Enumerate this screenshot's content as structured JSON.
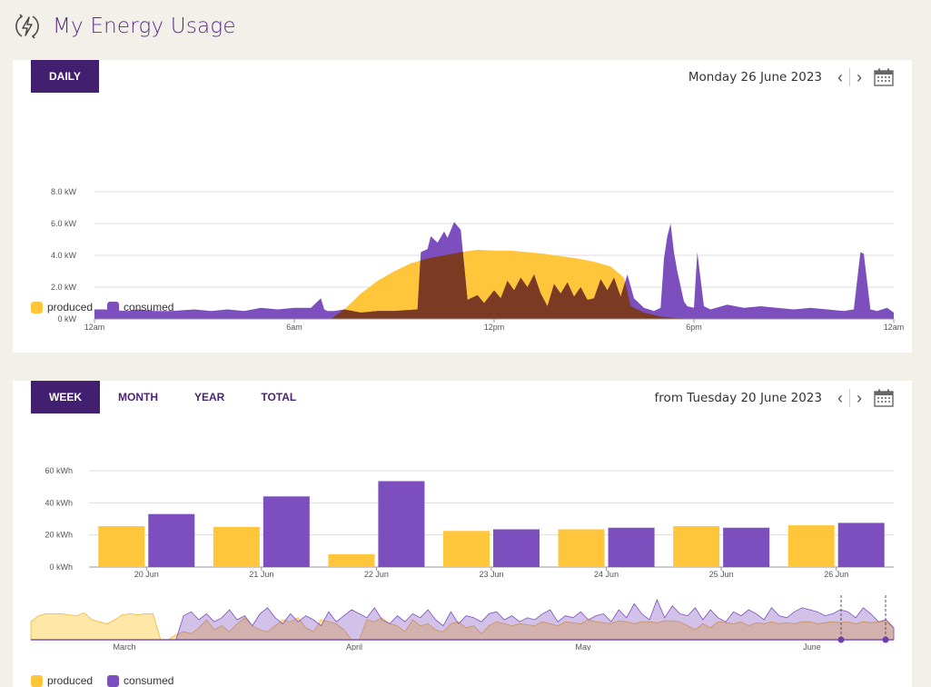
{
  "header": {
    "title": "My Energy Usage",
    "icon": "energy-bolt-icon"
  },
  "colors": {
    "produced": "#ffc63b",
    "consumed": "#7d4ebd",
    "overlap": "#7a3b22",
    "accent": "#43206f"
  },
  "daily": {
    "tab_label": "DAILY",
    "date": "Monday 26 June 2023",
    "legend": {
      "produced": "produced",
      "consumed": "consumed"
    },
    "chart_data": {
      "type": "area",
      "title": "",
      "y_unit": "kW",
      "ylim": [
        0,
        8
      ],
      "y_ticks": [
        "0 kW",
        "2.0 kW",
        "4.0 kW",
        "6.0 kW",
        "8.0 kW"
      ],
      "x_ticks": [
        "12am",
        "6am",
        "12pm",
        "6pm",
        "12am"
      ],
      "grid": true,
      "series": [
        {
          "name": "produced",
          "x_hours": [
            0,
            7.1,
            7.5,
            8,
            8.5,
            9,
            9.5,
            10,
            10.5,
            11,
            11.5,
            12,
            12.5,
            13,
            13.5,
            14,
            14.5,
            15,
            15.5,
            15.9,
            16.1,
            16.5,
            17,
            17.5,
            18,
            24
          ],
          "values": [
            0,
            0,
            0.6,
            1.6,
            2.4,
            3.0,
            3.5,
            3.8,
            4.0,
            4.2,
            4.35,
            4.3,
            4.3,
            4.2,
            4.1,
            3.95,
            3.8,
            3.6,
            3.3,
            2.6,
            0.8,
            0.4,
            0.15,
            0.05,
            0,
            0
          ]
        },
        {
          "name": "consumed",
          "x_hours": [
            0,
            0.3,
            1,
            1.3,
            1.8,
            2.3,
            3,
            3.5,
            4,
            4.5,
            5,
            5.5,
            6,
            6.5,
            6.8,
            6.9,
            7,
            7.2,
            7.5,
            8,
            8.5,
            9,
            9.7,
            9.8,
            10,
            10.1,
            10.3,
            10.5,
            10.6,
            10.8,
            11,
            11.2,
            11.5,
            11.7,
            12,
            12.2,
            12.4,
            12.6,
            12.8,
            13,
            13.2,
            13.4,
            13.6,
            13.8,
            14,
            14.2,
            14.4,
            14.6,
            14.8,
            15,
            15.2,
            15.4,
            15.6,
            15.8,
            16,
            16.2,
            16.5,
            16.8,
            17,
            17.1,
            17.2,
            17.3,
            17.4,
            17.5,
            17.7,
            17.8,
            18.0,
            18.1,
            18.3,
            18.5,
            19,
            19.5,
            20,
            20.5,
            21,
            21.5,
            22,
            22.5,
            22.8,
            23,
            23.1,
            23.3,
            23.5,
            23.8,
            24
          ],
          "values": [
            0.6,
            0.6,
            0.5,
            0.6,
            0.5,
            0.5,
            0.6,
            0.5,
            0.6,
            0.5,
            0.7,
            0.6,
            0.7,
            0.7,
            1.3,
            0.6,
            0.5,
            0.5,
            0.6,
            0.4,
            0.5,
            0.5,
            0.6,
            4.2,
            4.4,
            5.2,
            4.8,
            5.5,
            5.1,
            6.1,
            5.6,
            1.2,
            1.5,
            1.0,
            1.8,
            1.3,
            2.4,
            1.8,
            2.6,
            2.0,
            2.8,
            1.6,
            0.8,
            2.2,
            1.6,
            2.3,
            1.4,
            2.0,
            1.2,
            1.3,
            2.5,
            1.8,
            2.6,
            1.4,
            2.8,
            1.3,
            0.7,
            0.5,
            0.7,
            3.8,
            5.2,
            6.0,
            4.2,
            3.0,
            1.1,
            0.8,
            0.7,
            4.2,
            0.8,
            0.6,
            0.9,
            0.7,
            0.8,
            0.7,
            0.6,
            0.7,
            0.6,
            0.5,
            0.6,
            4.2,
            4.1,
            0.6,
            0.5,
            0.7,
            0.4
          ]
        }
      ]
    }
  },
  "weekly": {
    "tabs": [
      {
        "label": "WEEK",
        "active": true
      },
      {
        "label": "MONTH",
        "active": false
      },
      {
        "label": "YEAR",
        "active": false
      },
      {
        "label": "TOTAL",
        "active": false
      }
    ],
    "date": "from Tuesday 20 June 2023",
    "legend": {
      "produced": "produced",
      "consumed": "consumed"
    },
    "chart_data": {
      "type": "bar",
      "title": "",
      "y_unit": "kWh",
      "ylim": [
        0,
        60
      ],
      "y_ticks": [
        "0 kWh",
        "20 kWh",
        "40 kWh",
        "60 kWh"
      ],
      "categories": [
        "20 Jun",
        "21 Jun",
        "22 Jun",
        "23 Jun",
        "24 Jun",
        "25 Jun",
        "26 Jun"
      ],
      "grid": true,
      "series": [
        {
          "name": "produced",
          "values": [
            25.5,
            25,
            8,
            22.5,
            23.5,
            25.5,
            26
          ]
        },
        {
          "name": "consumed",
          "values": [
            33,
            44,
            53.5,
            23.5,
            24.5,
            24.5,
            27.5
          ]
        }
      ]
    },
    "overview": {
      "month_labels": [
        "March",
        "April",
        "May",
        "June"
      ],
      "produced": [
        18,
        24,
        26,
        26,
        26,
        25,
        24,
        27,
        20,
        18,
        16,
        20,
        25,
        26,
        25,
        26,
        26,
        0,
        0,
        5,
        8,
        6,
        12,
        20,
        10,
        14,
        8,
        16,
        22,
        14,
        10,
        8,
        14,
        20,
        18,
        22,
        12,
        8,
        20,
        18,
        16,
        10,
        0,
        0,
        20,
        18,
        22,
        16,
        14,
        8,
        20,
        14,
        16,
        10,
        8,
        16,
        18,
        12,
        14,
        6,
        14,
        18,
        16,
        14,
        16,
        15,
        14,
        18,
        16,
        14,
        18,
        17,
        16,
        20,
        18,
        17,
        16,
        19,
        18,
        16,
        18,
        18,
        17,
        19,
        19,
        18,
        14,
        10,
        16,
        12,
        18,
        17,
        16,
        18,
        14,
        17,
        16,
        18,
        16,
        17,
        16,
        18,
        18,
        16,
        17,
        18,
        17,
        18,
        16,
        18,
        17,
        18,
        18,
        12
      ],
      "consumed": [
        0,
        0,
        0,
        0,
        0,
        0,
        0,
        0,
        0,
        0,
        0,
        0,
        0,
        0,
        0,
        0,
        0,
        0,
        0,
        0,
        24,
        28,
        20,
        26,
        18,
        22,
        30,
        20,
        24,
        14,
        26,
        32,
        22,
        16,
        26,
        18,
        24,
        20,
        14,
        28,
        18,
        24,
        30,
        26,
        22,
        32,
        20,
        16,
        24,
        18,
        26,
        22,
        30,
        20,
        14,
        28,
        16,
        24,
        22,
        18,
        26,
        28,
        20,
        24,
        18,
        22,
        20,
        26,
        30,
        18,
        24,
        22,
        28,
        20,
        24,
        26,
        18,
        30,
        22,
        36,
        26,
        20,
        40,
        22,
        34,
        26,
        24,
        32,
        20,
        30,
        22,
        18,
        28,
        24,
        30,
        26,
        20,
        32,
        24,
        22,
        28,
        32,
        30,
        28,
        24,
        26,
        30,
        28,
        22,
        32,
        26,
        18,
        20,
        12
      ]
    }
  }
}
